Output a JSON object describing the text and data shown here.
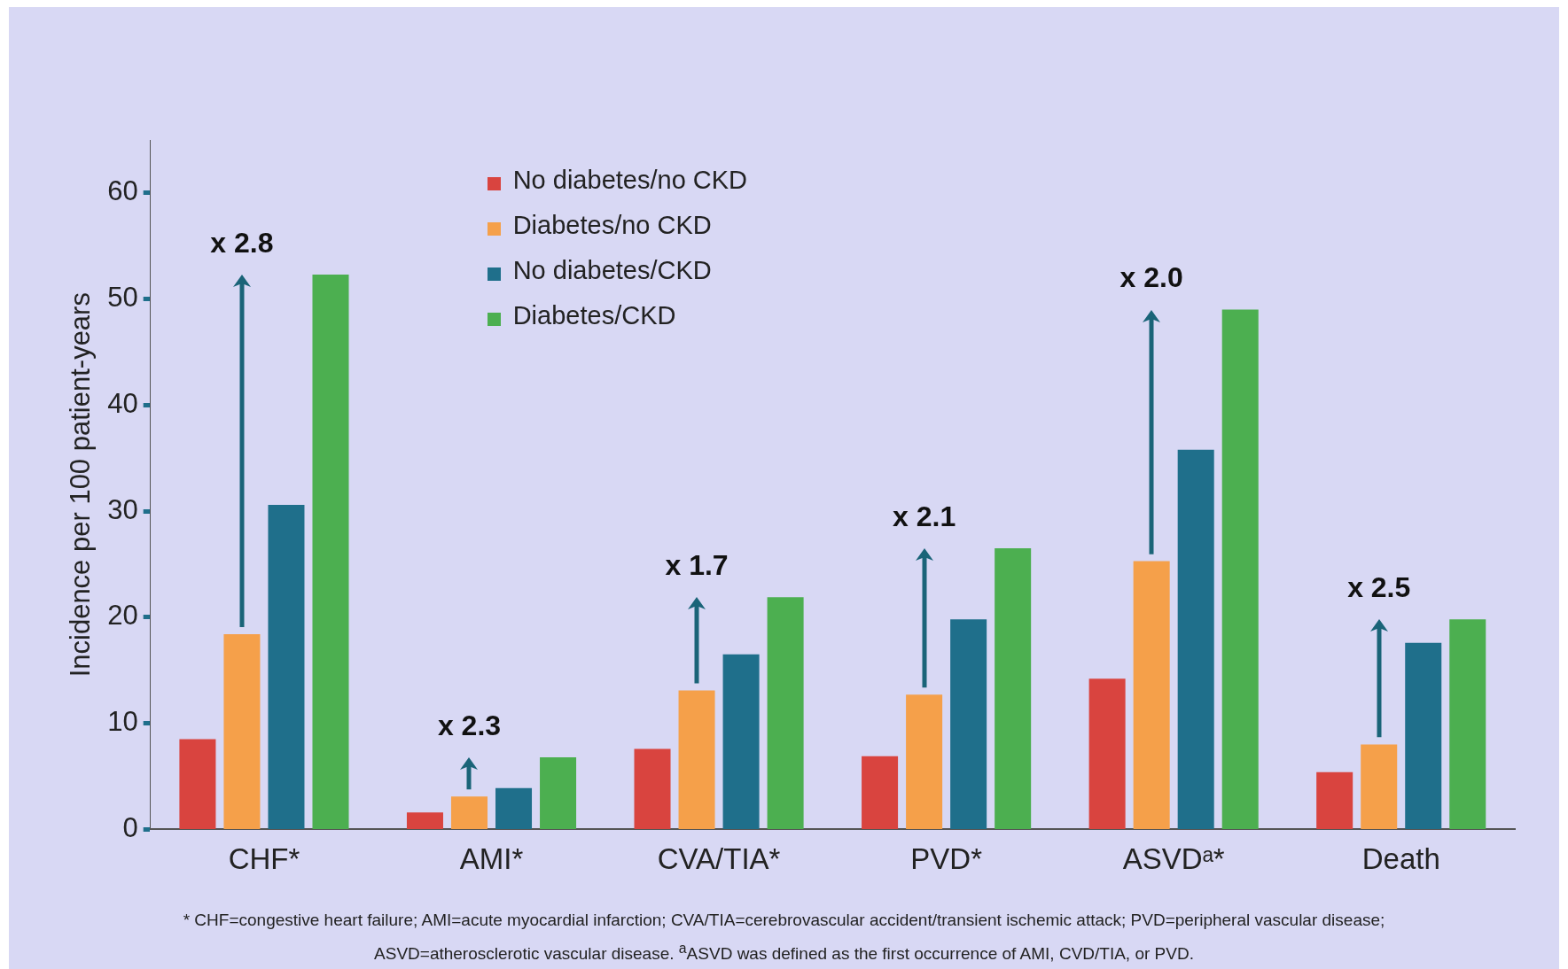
{
  "chart_data": {
    "type": "bar",
    "ylabel": "Incidence per 100 patient-years",
    "categories": [
      "CHF*",
      "AMI*",
      "CVA/TIA*",
      "PVD*",
      "ASVDᵃ*",
      "Death"
    ],
    "series": [
      {
        "name": "No diabetes/no CKD",
        "color": "#d9443f",
        "values": [
          8.5,
          1.6,
          7.6,
          6.9,
          14.2,
          5.4
        ]
      },
      {
        "name": "Diabetes/no CKD",
        "color": "#f5a04a",
        "values": [
          18.4,
          3.1,
          13.1,
          12.7,
          25.3,
          8.0
        ]
      },
      {
        "name": "No diabetes/CKD",
        "color": "#1f6f8b",
        "values": [
          30.6,
          3.9,
          16.5,
          19.8,
          35.8,
          17.6
        ]
      },
      {
        "name": "Diabetes/CKD",
        "color": "#4caf50",
        "values": [
          52.3,
          6.8,
          21.9,
          26.5,
          49.0,
          19.8
        ]
      }
    ],
    "ylim": [
      0,
      65
    ],
    "yticks": [
      0,
      10,
      20,
      30,
      40,
      50,
      60
    ],
    "grid": false,
    "legend": "top left",
    "annotations": [
      "x 2.8",
      "x 2.3",
      "x 1.7",
      "x 2.1",
      "x 2.0",
      "x 2.5",
      "* CHF=congestive heart failure; AMI=acute myocardial infarction; CVA/TIA=cerebrovascular accident/transient ischemic attack; PVD=peripheral vascular disease; ASVD=atherosclerotic vascular disease. $^{a}$ASVD was defined as the first occurrence of AMI, CVD/TIA, or PVD."
    ]
  }
}
